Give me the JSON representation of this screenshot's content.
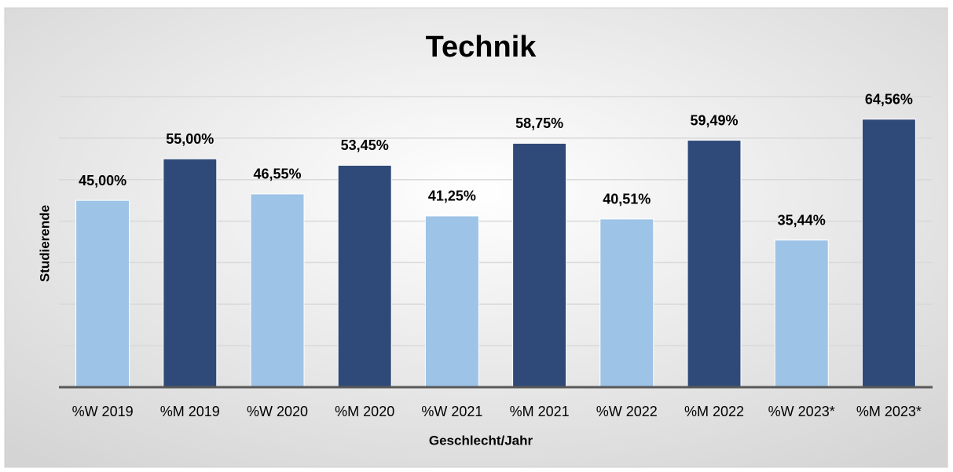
{
  "chart_data": {
    "type": "bar",
    "title": "Technik",
    "xlabel": "Geschlecht/Jahr",
    "ylabel": "Studierende",
    "categories": [
      "%W 2019",
      "%M 2019",
      "%W 2020",
      "%M 2020",
      "%W 2021",
      "%M 2021",
      "%W 2022",
      "%M 2022",
      "%W 2023*",
      "%M 2023*"
    ],
    "values": [
      45.0,
      55.0,
      46.55,
      53.45,
      41.25,
      58.75,
      40.51,
      59.49,
      35.44,
      64.56
    ],
    "value_labels": [
      "45,00%",
      "55,00%",
      "46,55%",
      "53,45%",
      "41,25%",
      "58,75%",
      "40,51%",
      "59,49%",
      "35,44%",
      "64,56%"
    ],
    "colors": [
      "#9dc3e6",
      "#2f4a78",
      "#9dc3e6",
      "#2f4a78",
      "#9dc3e6",
      "#2f4a78",
      "#9dc3e6",
      "#2f4a78",
      "#9dc3e6",
      "#2f4a78"
    ],
    "ylim": [
      0,
      70
    ],
    "yticks": [
      0,
      10,
      20,
      30,
      40,
      50,
      60,
      70
    ],
    "grid": true
  }
}
